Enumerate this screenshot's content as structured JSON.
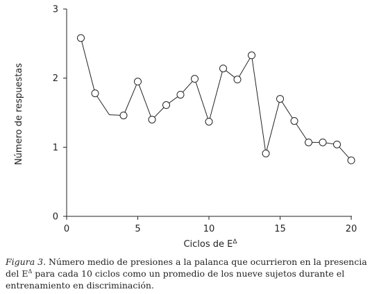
{
  "chart_data": {
    "type": "line",
    "xlabel": "Ciclos de E",
    "xlabel_sup": "Δ",
    "ylabel": "Número de respuestas",
    "xlim": [
      0,
      20
    ],
    "ylim": [
      0,
      3
    ],
    "xticks": [
      0,
      5,
      10,
      15,
      20
    ],
    "yticks": [
      0,
      1,
      2,
      3
    ],
    "grid": false,
    "series": [
      {
        "x": [
          1,
          2,
          3,
          4,
          5,
          6,
          7,
          8,
          9,
          10,
          11,
          12,
          13,
          14,
          15,
          16,
          17,
          18,
          19,
          20
        ],
        "y": [
          2.58,
          1.78,
          1.47,
          1.46,
          1.95,
          1.4,
          1.61,
          1.76,
          1.99,
          1.37,
          2.14,
          1.98,
          2.33,
          0.91,
          1.7,
          1.38,
          1.07,
          1.07,
          1.04,
          0.81
        ],
        "markers": [
          true,
          true,
          false,
          true,
          true,
          true,
          true,
          true,
          true,
          true,
          true,
          true,
          true,
          true,
          true,
          true,
          true,
          true,
          true,
          true
        ]
      }
    ]
  },
  "caption": {
    "label": "Figura 3.",
    "text_before_sup": "Número medio de presiones a la palanca que ocurrieron en la presencia del E",
    "sup": "Δ",
    "text_after_sup": " para cada 10 ciclos como un promedio de los nueve sujetos durante el entrenamiento en discriminación."
  }
}
